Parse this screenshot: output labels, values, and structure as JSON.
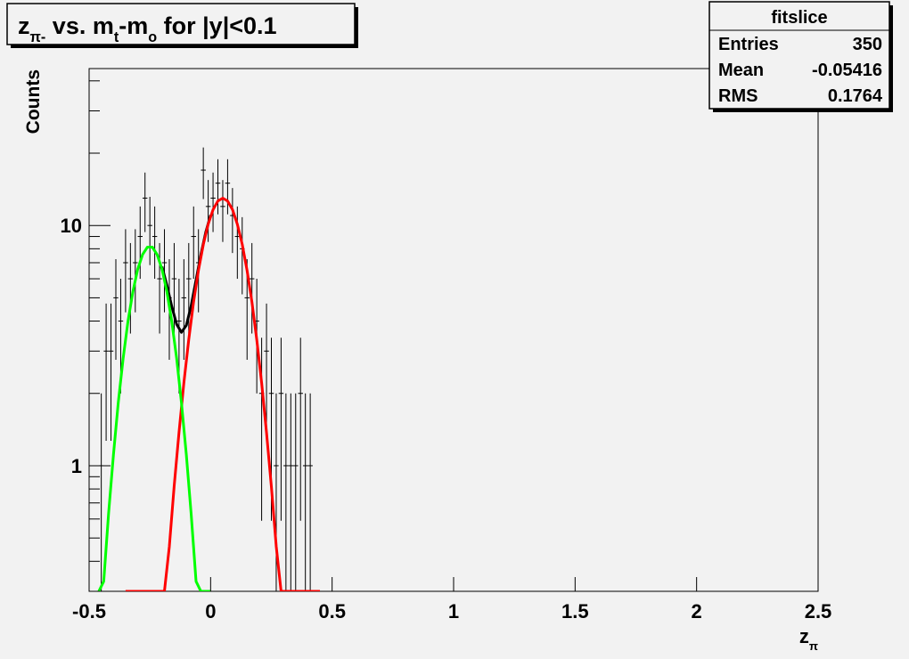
{
  "chart_data": {
    "type": "histogram",
    "title": [
      {
        "text": "z"
      },
      {
        "text": "π-",
        "sub": true
      },
      {
        "text": " vs. m"
      },
      {
        "text": "t",
        "sub": true
      },
      {
        "text": "-m"
      },
      {
        "text": "o",
        "sub": true
      },
      {
        "text": " for |y|<0.1"
      }
    ],
    "xlabel": [
      {
        "text": "z"
      },
      {
        "text": "π",
        "sub": true
      }
    ],
    "ylabel": "Counts",
    "log_y": true,
    "color": "#000000",
    "xlim": [
      -0.5,
      2.5
    ],
    "xticks": [
      -0.5,
      0,
      0.5,
      1,
      1.5,
      2,
      2.5
    ],
    "ylim": [
      0.3,
      45
    ],
    "yticks": [
      1,
      10
    ],
    "yminor": [
      0.3,
      0.4,
      0.5,
      0.6,
      0.7,
      0.8,
      0.9,
      2,
      3,
      4,
      5,
      6,
      7,
      8,
      9,
      20,
      30,
      40
    ],
    "bins": [
      -0.46,
      -0.44,
      -0.42,
      -0.4,
      -0.38,
      -0.36,
      -0.34,
      -0.32,
      -0.3,
      -0.28,
      -0.26,
      -0.24,
      -0.22,
      -0.2,
      -0.18,
      -0.16,
      -0.14,
      -0.12,
      -0.1,
      -0.08,
      -0.06,
      -0.04,
      -0.02,
      0,
      0.02,
      0.04,
      0.06,
      0.08,
      0.1,
      0.12,
      0.14,
      0.16,
      0.18,
      0.2,
      0.22,
      0.24,
      0.26,
      0.28,
      0.3,
      0.32,
      0.34,
      0.36,
      0.38,
      0.4,
      0.42
    ],
    "counts": [
      1,
      3,
      3,
      5,
      4,
      7,
      6,
      7,
      9,
      13,
      10,
      9,
      6,
      7,
      5,
      6,
      4,
      5,
      6,
      9,
      7,
      17,
      12,
      13,
      15,
      12,
      15,
      11,
      9,
      8,
      5,
      6,
      4,
      2,
      3,
      2,
      1,
      2,
      1,
      1,
      1,
      2,
      1,
      1
    ],
    "errors": [
      1,
      1.73,
      1.73,
      2.24,
      2,
      2.65,
      2.45,
      2.65,
      3,
      3.61,
      3.16,
      3,
      2.45,
      2.65,
      2.24,
      2.45,
      2,
      2.24,
      2.45,
      3,
      2.65,
      4.12,
      3.46,
      3.61,
      3.87,
      3.46,
      3.87,
      3.32,
      3,
      2.83,
      2.24,
      2.45,
      2,
      1.41,
      1.73,
      1.41,
      1,
      1.41,
      1,
      1,
      1,
      1.41,
      1,
      1
    ],
    "fits": [
      {
        "color": "#000000",
        "x": [
          -0.2,
          -0.18,
          -0.16,
          -0.14,
          -0.12,
          -0.1,
          -0.08,
          -0.06,
          -0.04,
          -0.02,
          0
        ],
        "values": [
          6.74,
          5.63,
          4.61,
          3.88,
          3.59,
          3.84,
          4.63,
          5.93,
          7.56,
          9.38,
          11.03
        ]
      },
      {
        "color": "#ff0000",
        "x": [
          -0.35,
          -0.23,
          -0.21,
          -0.19,
          -0.17,
          -0.15,
          -0.13,
          -0.11,
          -0.09,
          -0.07,
          -0.05,
          -0.03,
          -0.01,
          0.01,
          0.03,
          0.05,
          0.07,
          0.09,
          0.11,
          0.13,
          0.15,
          0.17,
          0.19,
          0.21,
          0.23,
          0.25,
          0.27,
          0.29,
          0.31,
          0.33,
          0.45
        ],
        "values": [
          0.001,
          0.057,
          0.12,
          0.24,
          0.46,
          0.82,
          1.38,
          2.21,
          3.35,
          4.8,
          6.51,
          8.35,
          10.13,
          11.64,
          12.65,
          13,
          12.65,
          11.64,
          10.13,
          8.35,
          6.51,
          4.8,
          3.35,
          2.21,
          1.38,
          0.82,
          0.46,
          0.24,
          0.12,
          0.057,
          0.001
        ]
      },
      {
        "color": "#00ff00",
        "x": [
          -0.46,
          -0.44,
          -0.42,
          -0.4,
          -0.38,
          -0.36,
          -0.34,
          -0.32,
          -0.3,
          -0.28,
          -0.26,
          -0.24,
          -0.22,
          -0.2,
          -0.18,
          -0.16,
          -0.14,
          -0.12,
          -0.1,
          -0.08,
          -0.06,
          -0.04,
          -0.02,
          0
        ],
        "values": [
          0.16,
          0.33,
          0.63,
          1.11,
          1.83,
          2.8,
          3.99,
          5.3,
          6.57,
          7.57,
          8.13,
          8.13,
          7.57,
          6.57,
          5.3,
          3.99,
          2.8,
          1.83,
          1.11,
          0.63,
          0.33,
          0.16,
          0.075,
          0.032
        ]
      }
    ],
    "stats": {
      "title": "fitslice",
      "rows": [
        [
          "Entries",
          350
        ],
        [
          "Mean",
          -0.05416
        ],
        [
          "RMS",
          0.1764
        ]
      ]
    }
  }
}
